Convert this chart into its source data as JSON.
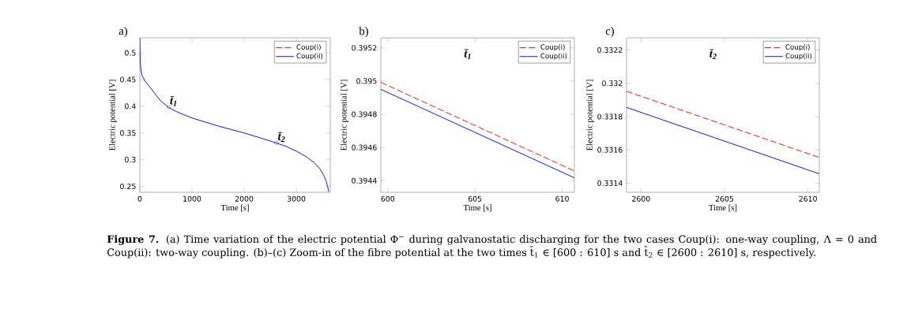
{
  "chart_data": [
    {
      "type": "line",
      "title": "a)",
      "xlabel": "Time [s]",
      "ylabel": "Electric potential [V]",
      "xlim": [
        0,
        3650
      ],
      "ylim": [
        0.239,
        0.528
      ],
      "xticks": [
        0,
        1000,
        2000,
        3000
      ],
      "yticks": [
        0.25,
        0.3,
        0.35,
        0.4,
        0.45,
        0.5
      ],
      "legend": "top right",
      "series": [
        {
          "name": "Coup(i)",
          "color": "#ff0000",
          "line_style": "dashed"
        },
        {
          "name": "Coup(ii)",
          "color": "#0000ff",
          "line_style": "solid",
          "x": [
            0,
            5,
            15,
            40,
            100,
            200,
            300,
            400,
            550,
            700,
            1000,
            1500,
            2000,
            2500,
            2620,
            2800,
            3000,
            3200,
            3350,
            3450,
            3520,
            3570,
            3600,
            3620
          ],
          "values": [
            0.528,
            0.5,
            0.472,
            0.458,
            0.447,
            0.435,
            0.422,
            0.41,
            0.398,
            0.39,
            0.378,
            0.363,
            0.35,
            0.335,
            0.331,
            0.325,
            0.316,
            0.305,
            0.294,
            0.283,
            0.272,
            0.26,
            0.25,
            0.24
          ]
        }
      ],
      "annotations": [
        {
          "text": "t̄$_{1}$",
          "x": 550,
          "y": 0.398
        },
        {
          "text": "t̄$_{2}$",
          "x": 2620,
          "y": 0.331
        },
        "**Figure 7.** (a) Time variation of the electric potential Φ$^{−}$ during galvanostatic discharging for the two cases Coup(i): one-way coupling, Λ = 0 and Coup(ii): two-way coupling. (b)–(c) Zoom-in of the fibre potential at the two times t̄$_{1}$ ∈ [600 : 610] s and t̄$_{2}$ ∈ [2600 : 2610] s, respectively."
      ]
    },
    {
      "type": "line",
      "title": "b)",
      "subtitle": "t̄$_{1}$",
      "xlabel": "Time [s]",
      "ylabel": "Electric potential [V]",
      "xlim": [
        599.6,
        610.7
      ],
      "ylim": [
        0.39433,
        0.39526
      ],
      "xticks": [
        600,
        605,
        610
      ],
      "yticks": [
        0.3944,
        0.3946,
        0.3948,
        0.395,
        0.3952
      ],
      "legend": "top right",
      "series": [
        {
          "name": "Coup(i)",
          "color": "#ff0000",
          "line_style": "dashed",
          "x": [
            599.6,
            610.7
          ],
          "values": [
            0.394992,
            0.394458
          ]
        },
        {
          "name": "Coup(ii)",
          "color": "#0000ff",
          "line_style": "solid",
          "x": [
            599.6,
            610.7
          ],
          "values": [
            0.39495,
            0.394417
          ]
        }
      ]
    },
    {
      "type": "line",
      "title": "c)",
      "subtitle": "t̄$_{2}$",
      "xlabel": "Time [s]",
      "ylabel": "Electric potential [V]",
      "xlim": [
        2599.13,
        2610.68
      ],
      "ylim": [
        0.331345,
        0.332273
      ],
      "xticks": [
        2600,
        2605,
        2610
      ],
      "yticks": [
        0.3314,
        0.3316,
        0.3318,
        0.332,
        0.3322
      ],
      "legend": "top right",
      "series": [
        {
          "name": "Coup(i)",
          "color": "#ff0000",
          "line_style": "dashed",
          "x": [
            2599.13,
            2610.68
          ],
          "values": [
            0.331952,
            0.331554
          ]
        },
        {
          "name": "Coup(ii)",
          "color": "#0000ff",
          "line_style": "solid",
          "x": [
            2599.13,
            2610.68
          ],
          "values": [
            0.331855,
            0.331456
          ]
        }
      ]
    }
  ]
}
